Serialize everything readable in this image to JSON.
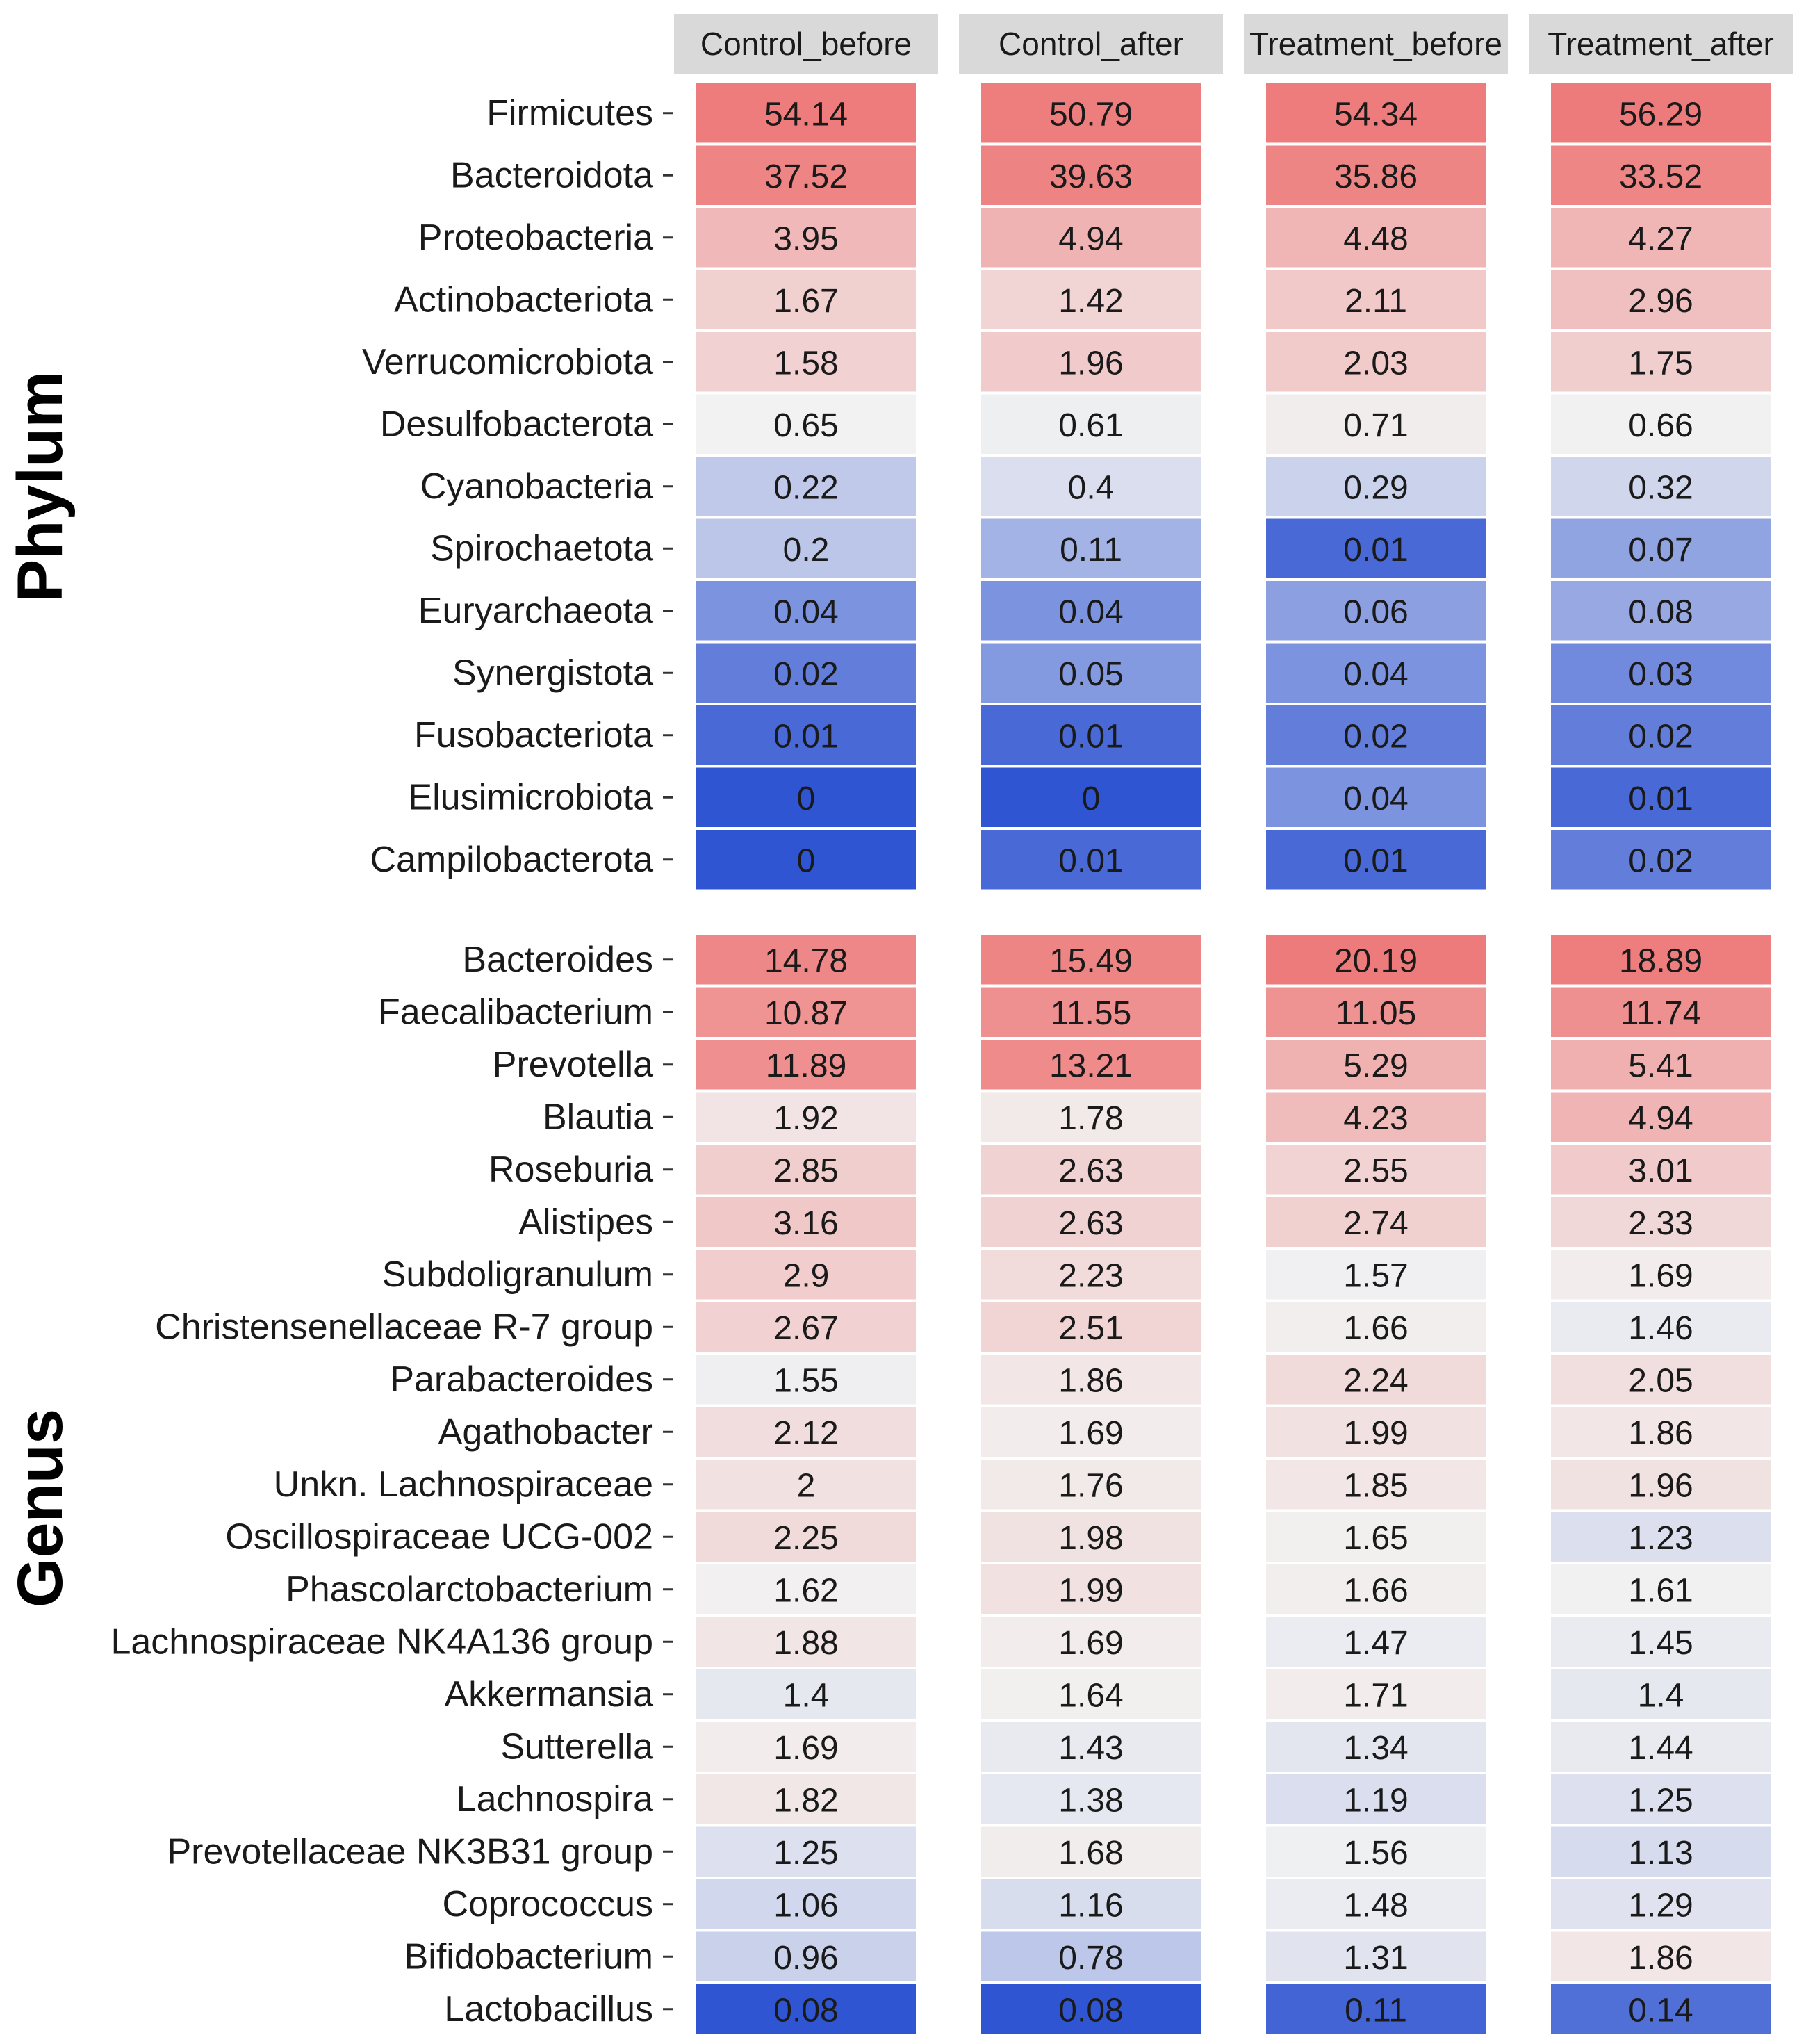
{
  "chart_data": {
    "type": "heatmap",
    "columns": [
      "Control_before",
      "Control_after",
      "Treatment_before",
      "Treatment_after"
    ],
    "colors": {
      "low": "#2f55d2",
      "mid": "#f2f2f2",
      "high": "#ee7b7b"
    },
    "facets": [
      {
        "title": "Phylum",
        "rows": [
          {
            "name": "Firmicutes",
            "values": [
              "54.14",
              "50.79",
              "54.34",
              "56.29"
            ]
          },
          {
            "name": "Bacteroidota",
            "values": [
              "37.52",
              "39.63",
              "35.86",
              "33.52"
            ]
          },
          {
            "name": "Proteobacteria",
            "values": [
              "3.95",
              "4.94",
              "4.48",
              "4.27"
            ]
          },
          {
            "name": "Actinobacteriota",
            "values": [
              "1.67",
              "1.42",
              "2.11",
              "2.96"
            ]
          },
          {
            "name": "Verrucomicrobiota",
            "values": [
              "1.58",
              "1.96",
              "2.03",
              "1.75"
            ]
          },
          {
            "name": "Desulfobacterota",
            "values": [
              "0.65",
              "0.61",
              "0.71",
              "0.66"
            ]
          },
          {
            "name": "Cyanobacteria",
            "values": [
              "0.22",
              "0.4",
              "0.29",
              "0.32"
            ]
          },
          {
            "name": "Spirochaetota",
            "values": [
              "0.2",
              "0.11",
              "0.01",
              "0.07"
            ]
          },
          {
            "name": "Euryarchaeota",
            "values": [
              "0.04",
              "0.04",
              "0.06",
              "0.08"
            ]
          },
          {
            "name": "Synergistota",
            "values": [
              "0.02",
              "0.05",
              "0.04",
              "0.03"
            ]
          },
          {
            "name": "Fusobacteriota",
            "values": [
              "0.01",
              "0.01",
              "0.02",
              "0.02"
            ]
          },
          {
            "name": "Elusimicrobiota",
            "values": [
              "0",
              "0",
              "0.04",
              "0.01"
            ]
          },
          {
            "name": "Campilobacterota",
            "values": [
              "0",
              "0.01",
              "0.01",
              "0.02"
            ]
          }
        ]
      },
      {
        "title": "Genus",
        "rows": [
          {
            "name": "Bacteroides",
            "values": [
              "14.78",
              "15.49",
              "20.19",
              "18.89"
            ]
          },
          {
            "name": "Faecalibacterium",
            "values": [
              "10.87",
              "11.55",
              "11.05",
              "11.74"
            ]
          },
          {
            "name": "Prevotella",
            "values": [
              "11.89",
              "13.21",
              "5.29",
              "5.41"
            ]
          },
          {
            "name": "Blautia",
            "values": [
              "1.92",
              "1.78",
              "4.23",
              "4.94"
            ]
          },
          {
            "name": "Roseburia",
            "values": [
              "2.85",
              "2.63",
              "2.55",
              "3.01"
            ]
          },
          {
            "name": "Alistipes",
            "values": [
              "3.16",
              "2.63",
              "2.74",
              "2.33"
            ]
          },
          {
            "name": "Subdoligranulum",
            "values": [
              "2.9",
              "2.23",
              "1.57",
              "1.69"
            ]
          },
          {
            "name": "Christensenellaceae R-7 group",
            "values": [
              "2.67",
              "2.51",
              "1.66",
              "1.46"
            ]
          },
          {
            "name": "Parabacteroides",
            "values": [
              "1.55",
              "1.86",
              "2.24",
              "2.05"
            ]
          },
          {
            "name": "Agathobacter",
            "values": [
              "2.12",
              "1.69",
              "1.99",
              "1.86"
            ]
          },
          {
            "name": "Unkn. Lachnospiraceae",
            "values": [
              "2",
              "1.76",
              "1.85",
              "1.96"
            ]
          },
          {
            "name": "Oscillospiraceae UCG-002",
            "values": [
              "2.25",
              "1.98",
              "1.65",
              "1.23"
            ]
          },
          {
            "name": "Phascolarctobacterium",
            "values": [
              "1.62",
              "1.99",
              "1.66",
              "1.61"
            ]
          },
          {
            "name": "Lachnospiraceae NK4A136 group",
            "values": [
              "1.88",
              "1.69",
              "1.47",
              "1.45"
            ]
          },
          {
            "name": "Akkermansia",
            "values": [
              "1.4",
              "1.64",
              "1.71",
              "1.4"
            ]
          },
          {
            "name": "Sutterella",
            "values": [
              "1.69",
              "1.43",
              "1.34",
              "1.44"
            ]
          },
          {
            "name": "Lachnospira",
            "values": [
              "1.82",
              "1.38",
              "1.19",
              "1.25"
            ]
          },
          {
            "name": "Prevotellaceae NK3B31 group",
            "values": [
              "1.25",
              "1.68",
              "1.56",
              "1.13"
            ]
          },
          {
            "name": "Coprococcus",
            "values": [
              "1.06",
              "1.16",
              "1.48",
              "1.29"
            ]
          },
          {
            "name": "Bifidobacterium",
            "values": [
              "0.96",
              "0.78",
              "1.31",
              "1.86"
            ]
          },
          {
            "name": "Lactobacillus",
            "values": [
              "0.08",
              "0.08",
              "0.11",
              "0.14"
            ]
          }
        ]
      }
    ]
  }
}
